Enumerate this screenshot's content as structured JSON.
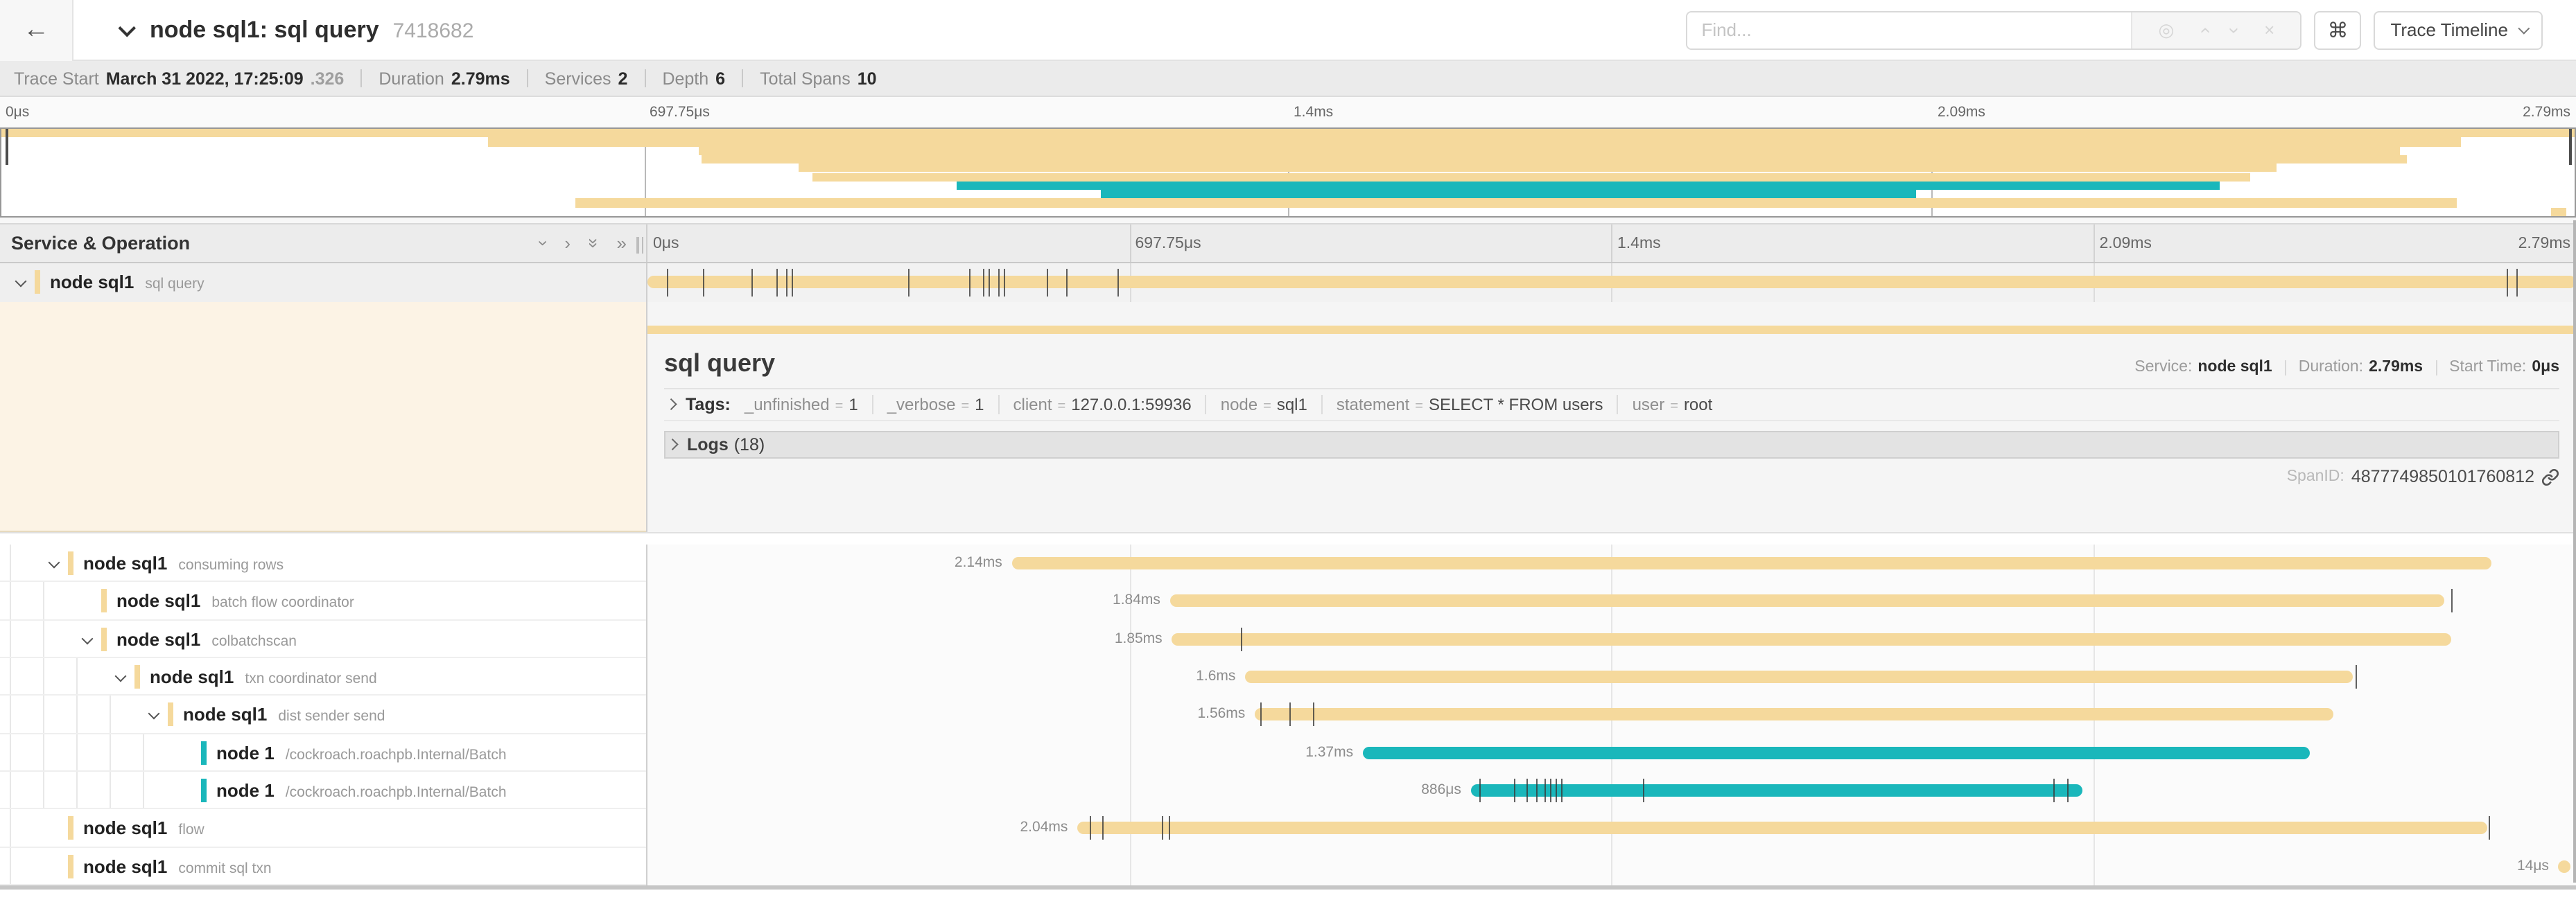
{
  "colors": {
    "tan": "#F5D99C",
    "teal": "#1AB7BB",
    "cream": "#FCF3E5",
    "detail_bg": "#F5F5F5"
  },
  "header": {
    "back_icon": "←",
    "title": "node sql1: sql query",
    "trace_id": "7418682",
    "find_placeholder": "Find...",
    "find_icons": [
      "◎",
      "chevron-up",
      "chevron-down",
      "×"
    ],
    "shortcut_button": "⌘",
    "view_button": "Trace Timeline"
  },
  "trace_meta": [
    {
      "label": "Trace Start",
      "value": "March 31 2022, 17:25:09",
      "suffix": ".326"
    },
    {
      "label": "Duration",
      "value": "2.79ms"
    },
    {
      "label": "Services",
      "value": "2"
    },
    {
      "label": "Depth",
      "value": "6"
    },
    {
      "label": "Total Spans",
      "value": "10"
    }
  ],
  "timeline_axis": {
    "ticks": [
      "0μs",
      "697.75μs",
      "1.4ms",
      "2.09ms",
      "2.79ms"
    ],
    "positions": [
      0,
      25,
      50,
      75,
      100
    ]
  },
  "left_panel": {
    "title": "Service & Operation"
  },
  "detail": {
    "title": "sql query",
    "service_label": "Service:",
    "service": "node sql1",
    "duration_label": "Duration:",
    "duration": "2.79ms",
    "start_label": "Start Time:",
    "start": "0μs",
    "tags_label": "Tags:",
    "tags": [
      {
        "key": "_unfinished",
        "value": "1"
      },
      {
        "key": "_verbose",
        "value": "1"
      },
      {
        "key": "client",
        "value": "127.0.0.1:59936"
      },
      {
        "key": "node",
        "value": "sql1"
      },
      {
        "key": "statement",
        "value": "SELECT * FROM users"
      },
      {
        "key": "user",
        "value": "root"
      }
    ],
    "logs_label": "Logs",
    "logs_count": "(18)",
    "spanid_label": "SpanID:",
    "spanid": "4877749850101760812"
  },
  "spans": [
    {
      "service": "node sql1",
      "operation": "sql query",
      "depth": 0,
      "color": "tan",
      "has_children": true,
      "selected": true,
      "duration_label": "",
      "start_pct": 0,
      "end_pct": 100,
      "ticks": [
        1.0,
        2.9,
        5.4,
        6.7,
        7.2,
        7.5,
        13.5,
        16.7,
        17.4,
        17.7,
        18.2,
        18.5,
        20.7,
        21.7,
        24.4,
        96.4,
        96.9
      ]
    },
    {
      "service": "node sql1",
      "operation": "consuming rows",
      "depth": 1,
      "color": "tan",
      "has_children": true,
      "duration_label": "2.14ms",
      "start_pct": 18.9,
      "end_pct": 95.6,
      "ticks": []
    },
    {
      "service": "node sql1",
      "operation": "batch flow coordinator",
      "depth": 2,
      "color": "tan",
      "has_children": false,
      "duration_label": "1.84ms",
      "start_pct": 27.1,
      "end_pct": 93.2,
      "ticks": [
        93.5
      ]
    },
    {
      "service": "node sql1",
      "operation": "colbatchscan",
      "depth": 2,
      "color": "tan",
      "has_children": true,
      "duration_label": "1.85ms",
      "start_pct": 27.2,
      "end_pct": 93.5,
      "ticks": [
        30.8
      ]
    },
    {
      "service": "node sql1",
      "operation": "txn coordinator send",
      "depth": 3,
      "color": "tan",
      "has_children": true,
      "duration_label": "1.6ms",
      "start_pct": 31.0,
      "end_pct": 88.4,
      "ticks": [
        88.6
      ]
    },
    {
      "service": "node sql1",
      "operation": "dist sender send",
      "depth": 4,
      "color": "tan",
      "has_children": true,
      "duration_label": "1.56ms",
      "start_pct": 31.5,
      "end_pct": 87.4,
      "ticks": [
        31.8,
        33.3,
        34.5
      ]
    },
    {
      "service": "node 1",
      "operation": "/cockroach.roachpb.Internal/Batch",
      "depth": 5,
      "color": "teal",
      "has_children": false,
      "duration_label": "1.37ms",
      "start_pct": 37.1,
      "end_pct": 86.2,
      "ticks": []
    },
    {
      "service": "node 1",
      "operation": "/cockroach.roachpb.Internal/Batch",
      "depth": 5,
      "color": "teal",
      "has_children": false,
      "duration_label": "886μs",
      "start_pct": 42.7,
      "end_pct": 74.4,
      "ticks": [
        43.1,
        44.9,
        45.6,
        46.1,
        46.5,
        46.8,
        47.1,
        47.4,
        51.6,
        72.9,
        73.6
      ]
    },
    {
      "service": "node sql1",
      "operation": "flow",
      "depth": 1,
      "color": "tan",
      "has_children": false,
      "duration_label": "2.04ms",
      "start_pct": 22.3,
      "end_pct": 95.4,
      "ticks": [
        22.9,
        23.6,
        26.7,
        27.0,
        95.5
      ]
    },
    {
      "service": "node sql1",
      "operation": "commit sql txn",
      "depth": 1,
      "color": "tan",
      "has_children": false,
      "duration_label": "14μs",
      "start_pct": 99.1,
      "end_pct": 99.7,
      "ticks": []
    }
  ]
}
